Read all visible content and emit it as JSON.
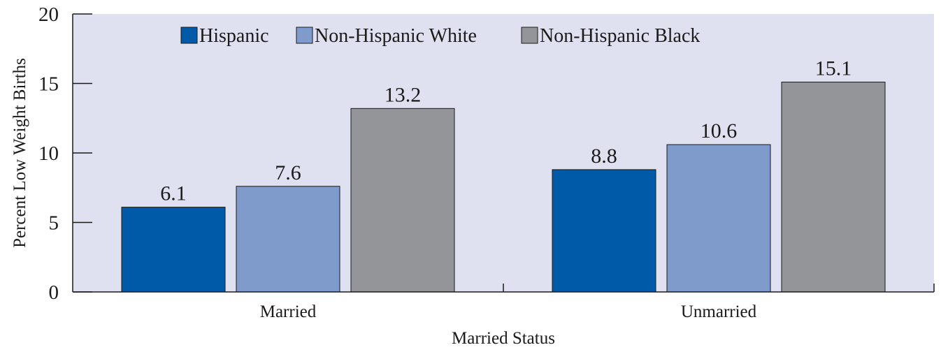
{
  "chart_data": {
    "type": "bar",
    "categories": [
      "Married",
      "Unmarried"
    ],
    "series": [
      {
        "name": "Hispanic",
        "values": [
          6.1,
          8.8
        ],
        "color": "#005aa8"
      },
      {
        "name": "Non-Hispanic White",
        "values": [
          7.6,
          10.6
        ],
        "color": "#7f9bcc"
      },
      {
        "name": "Non-Hispanic Black",
        "values": [
          13.2,
          15.1
        ],
        "color": "#939598"
      }
    ],
    "data_labels": [
      [
        "6.1",
        "8.8"
      ],
      [
        "7.6",
        "10.6"
      ],
      [
        "13.2",
        "15.1"
      ]
    ],
    "yticks": [
      "0",
      "5",
      "10",
      "15",
      "20"
    ],
    "ylim": [
      0,
      20
    ],
    "xlabel": "Married Status",
    "ylabel": "Percent Low Weight Births",
    "legend_position": "top",
    "plot_background": "#dfe1f1",
    "grid": false
  }
}
